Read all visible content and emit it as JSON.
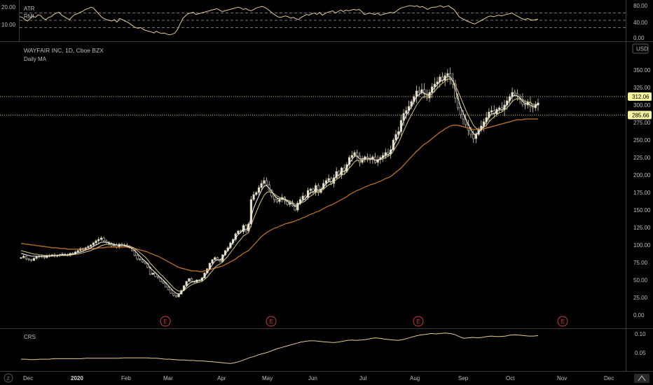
{
  "chart_data": {
    "type": "candlestick",
    "title": "WAYFAIR INC, 1D, Cboe BZX",
    "subtitle": "Daily MA",
    "currency": "USD",
    "x_ticks": [
      "Dec",
      "2020",
      "Feb",
      "Mar",
      "Apr",
      "May",
      "Jun",
      "Jul",
      "Aug",
      "Sep",
      "Oct",
      "Nov",
      "Dec"
    ],
    "y_ticks": [
      "350.00",
      "325.00",
      "300.00",
      "275.00",
      "250.00",
      "225.00",
      "200.00",
      "175.00",
      "150.00",
      "125.00",
      "100.00",
      "75.00",
      "50.00",
      "25.00",
      "0.00"
    ],
    "ylim": [
      -8,
      378
    ],
    "price_levels": [
      {
        "value": 312.06,
        "label": "312.06"
      },
      {
        "value": 285.66,
        "label": "285.66"
      }
    ],
    "earnings_markers": [
      "E",
      "E",
      "E",
      "E"
    ],
    "close": [
      82,
      84,
      80,
      79,
      78,
      81,
      83,
      84,
      83,
      82,
      84,
      85,
      86,
      84,
      85,
      86,
      87,
      86,
      85,
      88,
      87,
      90,
      92,
      95,
      93,
      96,
      98,
      100,
      103,
      106,
      108,
      110,
      106,
      104,
      102,
      99,
      100,
      97,
      101,
      99,
      100,
      98,
      96,
      92,
      85,
      80,
      79,
      76,
      74,
      68,
      58,
      60,
      55,
      53,
      48,
      46,
      40,
      36,
      31,
      28,
      26,
      30,
      35,
      42,
      48,
      52,
      48,
      47,
      50,
      49,
      53,
      60,
      66,
      74,
      79,
      82,
      79,
      76,
      86,
      92,
      96,
      103,
      108,
      116,
      120,
      119,
      128,
      120,
      130,
      165,
      172,
      175,
      182,
      188,
      192,
      186,
      178,
      170,
      165,
      162,
      165,
      168,
      163,
      158,
      160,
      156,
      150,
      160,
      165,
      170,
      168,
      178,
      180,
      175,
      185,
      175,
      180,
      188,
      192,
      195,
      188,
      196,
      205,
      200,
      210,
      205,
      215,
      225,
      228,
      232,
      227,
      218,
      222,
      226,
      224,
      222,
      226,
      218,
      222,
      225,
      228,
      232,
      230,
      236,
      250,
      258,
      262,
      278,
      288,
      292,
      298,
      305,
      312,
      320,
      318,
      322,
      316,
      310,
      318,
      326,
      330,
      333,
      340,
      335,
      342,
      345,
      338,
      330,
      310,
      296,
      286,
      280,
      272,
      264,
      258,
      252,
      258,
      264,
      270,
      276,
      282,
      290,
      292,
      287,
      294,
      296,
      293,
      300,
      306,
      312,
      318,
      316,
      312,
      308,
      301,
      300,
      304,
      298,
      296,
      300,
      303
    ],
    "ma_fast": [
      88,
      87,
      86,
      85,
      84,
      84,
      84,
      84,
      84,
      84,
      84,
      84,
      84,
      85,
      85,
      86,
      86,
      86,
      86,
      87,
      87,
      88,
      89,
      90,
      91,
      93,
      94,
      96,
      98,
      100,
      102,
      104,
      104,
      104,
      103,
      102,
      101,
      100,
      100,
      100,
      99,
      98,
      97,
      95,
      92,
      88,
      84,
      80,
      77,
      73,
      67,
      64,
      60,
      57,
      53,
      50,
      46,
      42,
      38,
      34,
      31,
      30,
      32,
      36,
      41,
      45,
      47,
      48,
      49,
      49,
      51,
      55,
      60,
      66,
      72,
      77,
      79,
      78,
      82,
      87,
      92,
      98,
      104,
      110,
      115,
      118,
      123,
      122,
      125,
      140,
      153,
      162,
      170,
      178,
      184,
      185,
      181,
      176,
      171,
      167,
      166,
      166,
      165,
      162,
      161,
      159,
      155,
      157,
      160,
      164,
      166,
      171,
      175,
      176,
      180,
      178,
      179,
      183,
      187,
      191,
      190,
      193,
      199,
      200,
      205,
      205,
      210,
      217,
      222,
      227,
      227,
      223,
      223,
      224,
      224,
      223,
      224,
      221,
      221,
      223,
      225,
      228,
      229,
      232,
      240,
      248,
      255,
      266,
      277,
      285,
      291,
      298,
      305,
      312,
      315,
      318,
      317,
      314,
      315,
      320,
      325,
      329,
      334,
      335,
      338,
      341,
      340,
      335,
      323,
      310,
      298,
      289,
      280,
      272,
      265,
      259,
      258,
      261,
      265,
      270,
      276,
      283,
      287,
      288,
      291,
      293,
      293,
      296,
      301,
      306,
      312,
      314,
      313,
      310,
      305,
      302,
      303,
      300,
      298,
      299,
      301
    ],
    "ma_mid": [
      92,
      91,
      90,
      89,
      88,
      87,
      87,
      86,
      86,
      85,
      85,
      85,
      85,
      85,
      85,
      85,
      85,
      85,
      85,
      86,
      86,
      87,
      87,
      88,
      89,
      90,
      91,
      92,
      94,
      95,
      97,
      99,
      100,
      101,
      101,
      101,
      101,
      100,
      100,
      100,
      100,
      99,
      98,
      97,
      95,
      92,
      89,
      86,
      83,
      79,
      74,
      70,
      66,
      62,
      58,
      55,
      51,
      47,
      43,
      39,
      36,
      34,
      34,
      35,
      38,
      41,
      43,
      45,
      46,
      47,
      48,
      51,
      54,
      59,
      63,
      68,
      71,
      73,
      76,
      80,
      84,
      89,
      94,
      99,
      104,
      108,
      113,
      115,
      118,
      128,
      138,
      147,
      156,
      164,
      171,
      175,
      176,
      175,
      173,
      170,
      168,
      167,
      166,
      164,
      163,
      161,
      158,
      158,
      159,
      161,
      163,
      167,
      170,
      172,
      176,
      176,
      177,
      180,
      183,
      186,
      187,
      190,
      194,
      196,
      200,
      201,
      205,
      210,
      214,
      219,
      221,
      220,
      221,
      222,
      222,
      222,
      223,
      221,
      221,
      222,
      223,
      225,
      227,
      229,
      234,
      240,
      246,
      254,
      263,
      271,
      279,
      286,
      293,
      300,
      305,
      310,
      312,
      312,
      313,
      316,
      320,
      324,
      328,
      331,
      334,
      337,
      337,
      335,
      328,
      320,
      311,
      302,
      293,
      285,
      278,
      271,
      267,
      265,
      266,
      268,
      271,
      276,
      280,
      283,
      286,
      289,
      290,
      293,
      296,
      300,
      305,
      308,
      309,
      309,
      307,
      305,
      305,
      303,
      301,
      301,
      301
    ],
    "ma_slow": [
      102,
      102,
      101,
      101,
      100,
      100,
      99,
      99,
      98,
      98,
      97,
      97,
      96,
      96,
      96,
      95,
      95,
      95,
      94,
      94,
      94,
      94,
      94,
      94,
      94,
      94,
      94,
      95,
      95,
      95,
      96,
      96,
      96,
      97,
      97,
      97,
      97,
      97,
      97,
      97,
      97,
      97,
      96,
      96,
      95,
      94,
      93,
      92,
      91,
      90,
      88,
      87,
      85,
      84,
      82,
      80,
      78,
      76,
      74,
      72,
      70,
      68,
      67,
      66,
      65,
      64,
      63,
      63,
      63,
      62,
      62,
      63,
      64,
      65,
      66,
      67,
      68,
      69,
      70,
      72,
      74,
      76,
      78,
      80,
      83,
      85,
      88,
      90,
      92,
      96,
      100,
      104,
      108,
      112,
      115,
      118,
      120,
      122,
      124,
      125,
      127,
      128,
      130,
      131,
      132,
      133,
      134,
      136,
      137,
      139,
      140,
      142,
      144,
      145,
      147,
      148,
      150,
      152,
      154,
      156,
      157,
      159,
      161,
      163,
      165,
      167,
      169,
      172,
      174,
      176,
      178,
      179,
      181,
      183,
      184,
      186,
      187,
      188,
      190,
      191,
      193,
      195,
      196,
      198,
      201,
      204,
      207,
      210,
      214,
      218,
      222,
      226,
      230,
      234,
      237,
      241,
      244,
      246,
      249,
      252,
      255,
      258,
      261,
      263,
      266,
      268,
      270,
      271,
      271,
      271,
      270,
      269,
      268,
      267,
      266,
      265,
      265,
      265,
      265,
      266,
      267,
      268,
      269,
      270,
      271,
      272,
      273,
      274,
      275,
      276,
      277,
      278,
      279,
      279,
      279,
      280,
      280,
      280,
      280,
      280,
      280
    ],
    "indicators": [
      {
        "labels": [
          "ATR",
          "RMI"
        ],
        "left_ticks": [
          "20.00",
          "10.00"
        ],
        "right_ticks": [
          "80.00",
          "40.00",
          "0.00"
        ],
        "ylim": [
          0,
          100
        ],
        "levels": [
          70,
          50,
          30
        ],
        "rmi": [
          60,
          58,
          52,
          48,
          55,
          62,
          58,
          65,
          63,
          55,
          52,
          58,
          60,
          66,
          70,
          72,
          64,
          60,
          55,
          52,
          60,
          66,
          68,
          72,
          75,
          80,
          82,
          86,
          84,
          76,
          68,
          60,
          55,
          52,
          50,
          48,
          52,
          45,
          55,
          52,
          48,
          45,
          40,
          35,
          30,
          28,
          30,
          25,
          22,
          20,
          18,
          15,
          20,
          16,
          14,
          15,
          12,
          10,
          12,
          15,
          25,
          40,
          55,
          62,
          68,
          70,
          72,
          66,
          68,
          70,
          72,
          74,
          76,
          78,
          80,
          82,
          78,
          74,
          76,
          78,
          80,
          82,
          84,
          86,
          84,
          80,
          82,
          78,
          76,
          80,
          84,
          86,
          88,
          86,
          82,
          76,
          70,
          65,
          60,
          58,
          60,
          62,
          60,
          56,
          58,
          54,
          52,
          58,
          62,
          66,
          64,
          68,
          70,
          66,
          72,
          64,
          68,
          72,
          74,
          76,
          70,
          74,
          78,
          74,
          78,
          76,
          78,
          80,
          78,
          80,
          74,
          66,
          68,
          70,
          68,
          66,
          70,
          64,
          66,
          68,
          70,
          72,
          70,
          74,
          80,
          84,
          86,
          88,
          90,
          90,
          88,
          90,
          86,
          88,
          84,
          80,
          84,
          86,
          86,
          88,
          90,
          86,
          88,
          90,
          84,
          80,
          70,
          60,
          55,
          52,
          48,
          45,
          42,
          40,
          44,
          48,
          52,
          56,
          60,
          62,
          60,
          62,
          64,
          62,
          64,
          66,
          68,
          70,
          66,
          62,
          58,
          54,
          52,
          55,
          52,
          50,
          52,
          53
        ]
      },
      {
        "labels": [
          "CRS"
        ],
        "right_ticks": [
          "0.10",
          "0.05"
        ],
        "ylim": [
          0.02,
          0.11
        ],
        "crs": [
          0.044,
          0.044,
          0.043,
          0.043,
          0.044,
          0.044,
          0.044,
          0.045,
          0.045,
          0.045,
          0.045,
          0.045,
          0.045,
          0.045,
          0.046,
          0.046,
          0.046,
          0.046,
          0.046,
          0.046,
          0.046,
          0.046,
          0.047,
          0.047,
          0.047,
          0.047,
          0.047,
          0.047,
          0.046,
          0.046,
          0.045,
          0.044,
          0.044,
          0.043,
          0.042,
          0.042,
          0.041,
          0.041,
          0.04,
          0.04,
          0.039,
          0.038,
          0.037,
          0.036,
          0.035,
          0.034,
          0.036,
          0.039,
          0.043,
          0.047,
          0.05,
          0.054,
          0.057,
          0.06,
          0.064,
          0.068,
          0.071,
          0.074,
          0.077,
          0.08,
          0.083,
          0.085,
          0.086,
          0.086,
          0.085,
          0.084,
          0.083,
          0.082,
          0.083,
          0.085,
          0.087,
          0.088,
          0.087,
          0.088,
          0.089,
          0.091,
          0.093,
          0.092,
          0.09,
          0.089,
          0.088,
          0.087,
          0.089,
          0.092,
          0.095,
          0.098,
          0.1,
          0.101,
          0.103,
          0.102,
          0.103,
          0.104,
          0.103,
          0.101,
          0.096,
          0.092,
          0.093,
          0.094,
          0.093,
          0.094,
          0.096,
          0.097,
          0.096,
          0.096,
          0.097,
          0.099,
          0.1,
          0.099,
          0.098,
          0.097,
          0.097,
          0.098
        ]
      }
    ]
  }
}
